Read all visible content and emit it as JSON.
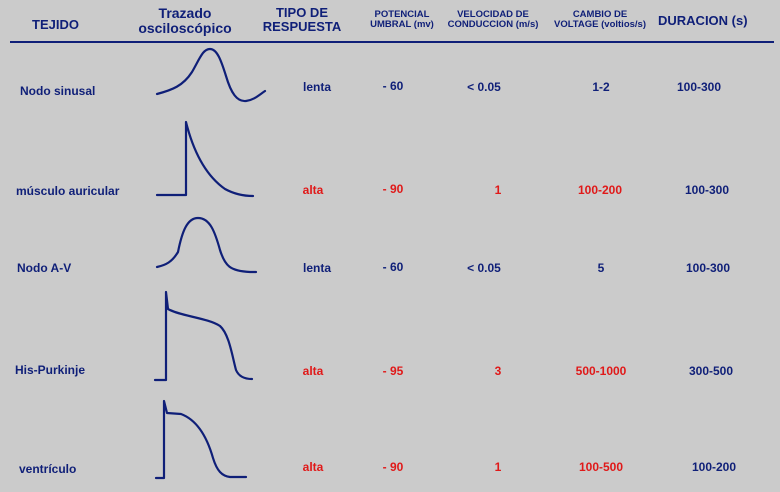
{
  "header": {
    "tejido": "TEJIDO",
    "trazado_1": "Trazado",
    "trazado_2": "osciloscópico",
    "tipo_1": "TIPO DE",
    "tipo_2": "RESPUESTA",
    "potencial_1": "POTENCIAL",
    "potencial_2": "UMBRAL (mv)",
    "velocidad_1": "VELOCIDAD DE",
    "velocidad_2": "CONDUCCION (m/s)",
    "cambio_1": "CAMBIO DE",
    "cambio_2": "VOLTAGE (voltios/s)",
    "duracion": "DURACION (s)"
  },
  "colors": {
    "blue": "#0f1f78",
    "red": "#e01919",
    "background": "#cbcbcb"
  },
  "rows": [
    {
      "tejido": "Nodo sinusal",
      "respuesta": "lenta",
      "potencial": "- 60",
      "velocidad": "< 0.05",
      "cambio": "1-2",
      "duracion": "100-300",
      "respuesta_color": "blue",
      "potencial_color": "blue",
      "velocidad_color": "blue",
      "cambio_color": "blue",
      "trace": "sinus-node-trace"
    },
    {
      "tejido": "músculo auricular",
      "respuesta": "alta",
      "potencial": "- 90",
      "velocidad": "1",
      "cambio": "100-200",
      "duracion": "100-300",
      "respuesta_color": "red",
      "potencial_color": "red",
      "velocidad_color": "red",
      "cambio_color": "red",
      "trace": "atrial-muscle-trace"
    },
    {
      "tejido": "Nodo A-V",
      "respuesta": "lenta",
      "potencial": "- 60",
      "velocidad": "< 0.05",
      "cambio": "5",
      "duracion": "100-300",
      "respuesta_color": "blue",
      "potencial_color": "blue",
      "velocidad_color": "blue",
      "cambio_color": "blue",
      "trace": "av-node-trace"
    },
    {
      "tejido": "His-Purkinje",
      "respuesta": "alta",
      "potencial": "- 95",
      "velocidad": "3",
      "cambio": "500-1000",
      "duracion": "300-500",
      "respuesta_color": "red",
      "potencial_color": "red",
      "velocidad_color": "red",
      "cambio_color": "red",
      "trace": "his-purkinje-trace"
    },
    {
      "tejido": "ventrículo",
      "respuesta": "alta",
      "potencial": "- 90",
      "velocidad": "1",
      "cambio": "100-500",
      "duracion": "100-200",
      "respuesta_color": "red",
      "potencial_color": "red",
      "velocidad_color": "red",
      "cambio_color": "red",
      "trace": "ventricle-trace"
    }
  ]
}
